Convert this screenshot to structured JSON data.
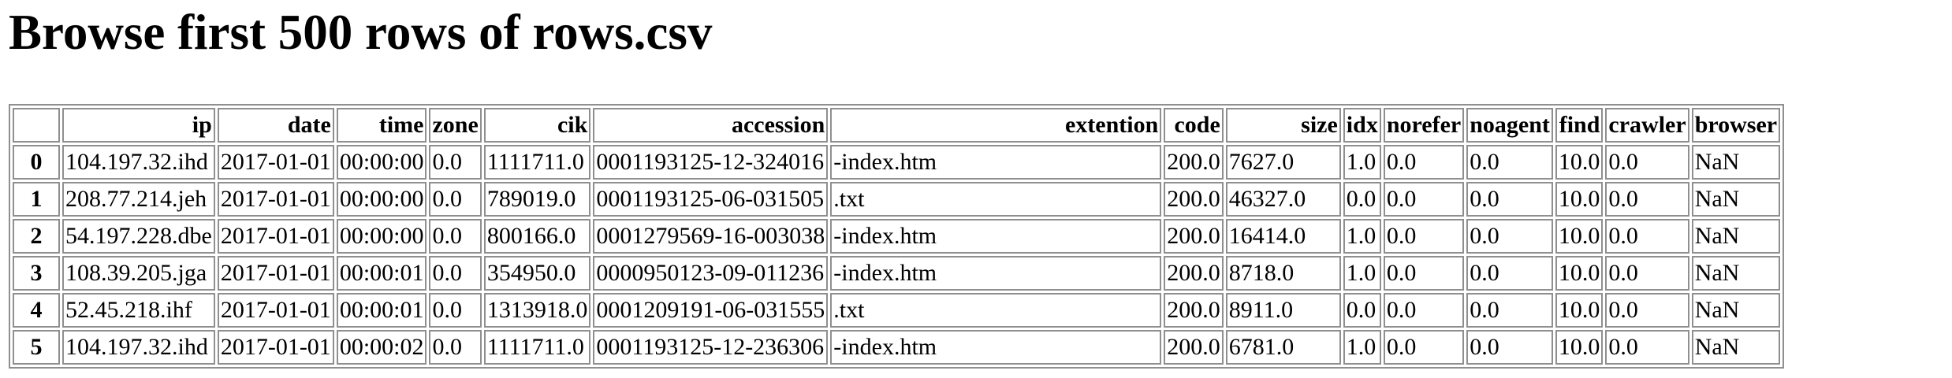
{
  "page": {
    "title": "Browse first 500 rows of rows.csv"
  },
  "table": {
    "columns": [
      "ip",
      "date",
      "time",
      "zone",
      "cik",
      "accession",
      "extention",
      "code",
      "size",
      "idx",
      "norefer",
      "noagent",
      "find",
      "crawler",
      "browser"
    ],
    "rows": [
      {
        "index": "0",
        "cells": [
          "104.197.32.ihd",
          "2017-01-01",
          "00:00:00",
          "0.0",
          "1111711.0",
          "0001193125-12-324016",
          "-index.htm",
          "200.0",
          "7627.0",
          "1.0",
          "0.0",
          "0.0",
          "10.0",
          "0.0",
          "NaN"
        ]
      },
      {
        "index": "1",
        "cells": [
          "208.77.214.jeh",
          "2017-01-01",
          "00:00:00",
          "0.0",
          "789019.0",
          "0001193125-06-031505",
          ".txt",
          "200.0",
          "46327.0",
          "0.0",
          "0.0",
          "0.0",
          "10.0",
          "0.0",
          "NaN"
        ]
      },
      {
        "index": "2",
        "cells": [
          "54.197.228.dbe",
          "2017-01-01",
          "00:00:00",
          "0.0",
          "800166.0",
          "0001279569-16-003038",
          "-index.htm",
          "200.0",
          "16414.0",
          "1.0",
          "0.0",
          "0.0",
          "10.0",
          "0.0",
          "NaN"
        ]
      },
      {
        "index": "3",
        "cells": [
          "108.39.205.jga",
          "2017-01-01",
          "00:00:01",
          "0.0",
          "354950.0",
          "0000950123-09-011236",
          "-index.htm",
          "200.0",
          "8718.0",
          "1.0",
          "0.0",
          "0.0",
          "10.0",
          "0.0",
          "NaN"
        ]
      },
      {
        "index": "4",
        "cells": [
          "52.45.218.ihf",
          "2017-01-01",
          "00:00:01",
          "0.0",
          "1313918.0",
          "0001209191-06-031555",
          ".txt",
          "200.0",
          "8911.0",
          "0.0",
          "0.0",
          "0.0",
          "10.0",
          "0.0",
          "NaN"
        ]
      },
      {
        "index": "5",
        "cells": [
          "104.197.32.ihd",
          "2017-01-01",
          "00:00:02",
          "0.0",
          "1111711.0",
          "0001193125-12-236306",
          "-index.htm",
          "200.0",
          "6781.0",
          "1.0",
          "0.0",
          "0.0",
          "10.0",
          "0.0",
          "NaN"
        ]
      }
    ]
  }
}
